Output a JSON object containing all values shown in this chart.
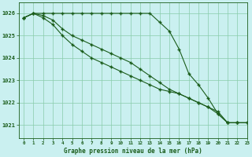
{
  "title": "Graphe pression niveau de la mer (hPa)",
  "background_color": "#caf0f0",
  "grid_color": "#88ccaa",
  "line_color": "#1a5c1a",
  "xlim": [
    -0.5,
    23
  ],
  "ylim": [
    1020.4,
    1026.5
  ],
  "yticks": [
    1021,
    1022,
    1023,
    1024,
    1025,
    1026
  ],
  "xticks": [
    0,
    1,
    2,
    3,
    4,
    5,
    6,
    7,
    8,
    9,
    10,
    11,
    12,
    13,
    14,
    15,
    16,
    17,
    18,
    19,
    20,
    21,
    22,
    23
  ],
  "series1": [
    1025.8,
    1026.0,
    1026.0,
    1026.0,
    1026.0,
    1026.0,
    1026.0,
    1026.0,
    1026.0,
    1026.0,
    1026.0,
    1026.0,
    1026.0,
    1026.0,
    1025.6,
    1025.2,
    1024.4,
    1023.3,
    1022.8,
    1022.2,
    1021.5,
    1021.1,
    1021.1,
    1021.1
  ],
  "series2": [
    1025.8,
    1026.0,
    1025.9,
    1025.7,
    1025.3,
    1025.0,
    1024.8,
    1024.6,
    1024.4,
    1024.2,
    1024.0,
    1023.8,
    1023.5,
    1023.2,
    1022.9,
    1022.6,
    1022.4,
    1022.2,
    1022.0,
    1021.8,
    1021.6,
    1021.1,
    1021.1,
    1021.1
  ],
  "series3": [
    1025.8,
    1026.0,
    1025.8,
    1025.5,
    1025.0,
    1024.6,
    1024.3,
    1024.0,
    1023.8,
    1023.6,
    1023.4,
    1023.2,
    1023.0,
    1022.8,
    1022.6,
    1022.5,
    1022.4,
    1022.2,
    1022.0,
    1021.8,
    1021.5,
    1021.1,
    1021.1,
    1021.1
  ]
}
